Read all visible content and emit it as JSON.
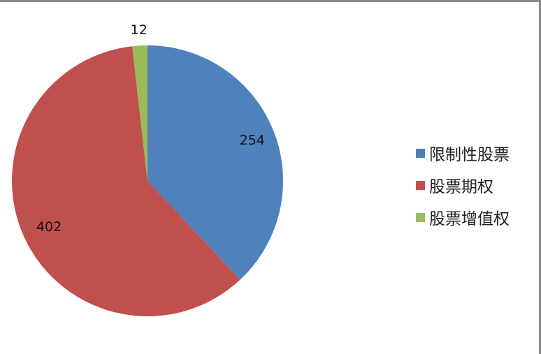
{
  "chart_data": {
    "type": "pie",
    "categories": [
      "限制性股票",
      "股票期权",
      "股票增值权"
    ],
    "values": [
      254,
      402,
      12
    ],
    "colors": [
      "#4F81BD",
      "#C0504D",
      "#9BBB59"
    ],
    "data_labels": [
      "254",
      "402",
      "12"
    ],
    "start_angle": "top, clockwise",
    "legend_position": "right"
  }
}
